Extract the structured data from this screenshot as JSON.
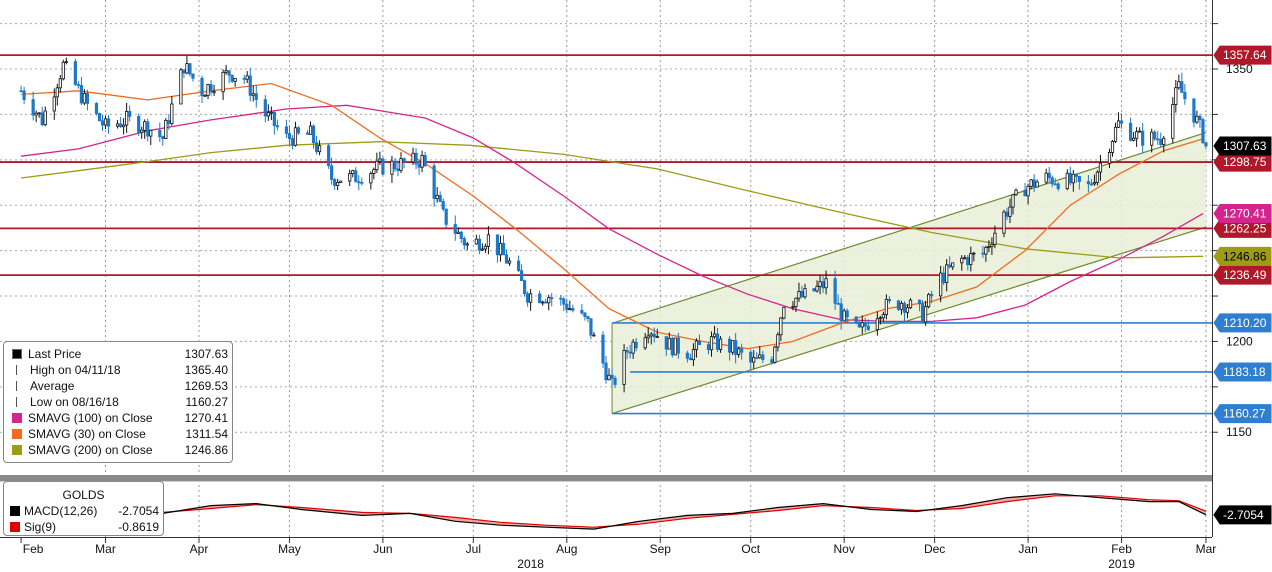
{
  "chart_data": {
    "type": "candlestick",
    "instrument": "GOLDS",
    "x_months": [
      "Feb",
      "Mar",
      "Apr",
      "May",
      "Jun",
      "Jul",
      "Aug",
      "Sep",
      "Oct",
      "Nov",
      "Dec",
      "Jan",
      "Feb",
      "Mar"
    ],
    "x_years": [
      "2018",
      "2019"
    ],
    "y_ticks": [
      "1350",
      "1200",
      "1150"
    ],
    "y_tick_values": [
      1350,
      1200,
      1150
    ],
    "ylim": [
      1127,
      1388
    ],
    "grid": true,
    "price_levels": [
      {
        "label": "1357.64",
        "value": 1357.64
      },
      {
        "label": "1298.75",
        "value": 1298.75
      },
      {
        "label": "1262.25",
        "value": 1262.25
      },
      {
        "label": "1236.49",
        "value": 1236.49
      }
    ],
    "support_levels": [
      {
        "label": "1210.20",
        "value": 1210.2
      },
      {
        "label": "1183.18",
        "value": 1183.18
      },
      {
        "label": "1160.27",
        "value": 1160.27
      }
    ],
    "value_tags": [
      {
        "label": "1307.63",
        "value": 1307.63,
        "color": "#000000"
      },
      {
        "label": "1270.41",
        "value": 1270.41,
        "color": "#d6248f"
      },
      {
        "label": "1246.86",
        "value": 1246.86,
        "color": "#9e9b17"
      }
    ],
    "channel": {
      "start_date": "2018-08-16",
      "end_date": "2019-03-01",
      "upper": [
        1210,
        1315
      ],
      "lower": [
        1160.27,
        1263
      ]
    },
    "sma_30_path": [
      [
        "2018-02-01",
        1336
      ],
      [
        "2018-02-20",
        1338
      ],
      [
        "2018-03-15",
        1333
      ],
      [
        "2018-04-05",
        1338
      ],
      [
        "2018-04-25",
        1342
      ],
      [
        "2018-05-15",
        1330
      ],
      [
        "2018-05-31",
        1312
      ],
      [
        "2018-06-15",
        1298
      ],
      [
        "2018-07-01",
        1280
      ],
      [
        "2018-07-15",
        1262
      ],
      [
        "2018-07-31",
        1240
      ],
      [
        "2018-08-15",
        1218
      ],
      [
        "2018-08-31",
        1205
      ],
      [
        "2018-09-15",
        1200
      ],
      [
        "2018-09-30",
        1196
      ],
      [
        "2018-10-15",
        1200
      ],
      [
        "2018-10-31",
        1210
      ],
      [
        "2018-11-15",
        1218
      ],
      [
        "2018-11-30",
        1222
      ],
      [
        "2018-12-15",
        1230
      ],
      [
        "2018-12-31",
        1250
      ],
      [
        "2019-01-15",
        1275
      ],
      [
        "2019-01-31",
        1292
      ],
      [
        "2019-02-15",
        1305
      ],
      [
        "2019-02-28",
        1311.54
      ]
    ],
    "sma_100_path": [
      [
        "2018-02-01",
        1302
      ],
      [
        "2018-02-20",
        1306
      ],
      [
        "2018-03-15",
        1316
      ],
      [
        "2018-04-05",
        1322
      ],
      [
        "2018-04-30",
        1328
      ],
      [
        "2018-05-20",
        1330
      ],
      [
        "2018-06-15",
        1323
      ],
      [
        "2018-07-01",
        1312
      ],
      [
        "2018-07-15",
        1298
      ],
      [
        "2018-07-31",
        1280
      ],
      [
        "2018-08-15",
        1262
      ],
      [
        "2018-08-31",
        1248
      ],
      [
        "2018-09-15",
        1236
      ],
      [
        "2018-09-30",
        1226
      ],
      [
        "2018-10-15",
        1218
      ],
      [
        "2018-10-31",
        1212
      ],
      [
        "2018-11-15",
        1211
      ],
      [
        "2018-11-30",
        1211
      ],
      [
        "2018-12-15",
        1213
      ],
      [
        "2018-12-31",
        1220
      ],
      [
        "2019-01-15",
        1233
      ],
      [
        "2019-01-31",
        1245
      ],
      [
        "2019-02-15",
        1258
      ],
      [
        "2019-02-28",
        1270.41
      ]
    ],
    "sma_200_path": [
      [
        "2018-02-01",
        1290
      ],
      [
        "2018-02-20",
        1294
      ],
      [
        "2018-03-15",
        1299
      ],
      [
        "2018-04-05",
        1304
      ],
      [
        "2018-04-30",
        1308
      ],
      [
        "2018-05-31",
        1310
      ],
      [
        "2018-06-30",
        1308
      ],
      [
        "2018-07-31",
        1303
      ],
      [
        "2018-08-31",
        1295
      ],
      [
        "2018-09-30",
        1283
      ],
      [
        "2018-10-31",
        1271
      ],
      [
        "2018-11-30",
        1260
      ],
      [
        "2018-12-31",
        1251
      ],
      [
        "2019-01-31",
        1246
      ],
      [
        "2019-02-28",
        1246.86
      ]
    ],
    "price_anchors": [
      [
        "2018-02-01",
        1338
      ],
      [
        "2018-02-08",
        1322
      ],
      [
        "2018-02-15",
        1352
      ],
      [
        "2018-02-23",
        1330
      ],
      [
        "2018-03-01",
        1318
      ],
      [
        "2018-03-08",
        1322
      ],
      [
        "2018-03-15",
        1318
      ],
      [
        "2018-03-20",
        1312
      ],
      [
        "2018-03-27",
        1352
      ],
      [
        "2018-04-02",
        1338
      ],
      [
        "2018-04-11",
        1348
      ],
      [
        "2018-04-16",
        1345
      ],
      [
        "2018-04-23",
        1325
      ],
      [
        "2018-04-30",
        1312
      ],
      [
        "2018-05-08",
        1314
      ],
      [
        "2018-05-15",
        1290
      ],
      [
        "2018-05-22",
        1290
      ],
      [
        "2018-05-31",
        1296
      ],
      [
        "2018-06-08",
        1298
      ],
      [
        "2018-06-14",
        1300
      ],
      [
        "2018-06-21",
        1269
      ],
      [
        "2018-06-29",
        1253
      ],
      [
        "2018-07-06",
        1257
      ],
      [
        "2018-07-13",
        1243
      ],
      [
        "2018-07-19",
        1226
      ],
      [
        "2018-07-26",
        1225
      ],
      [
        "2018-08-01",
        1220
      ],
      [
        "2018-08-08",
        1210
      ],
      [
        "2018-08-16",
        1175
      ],
      [
        "2018-08-21",
        1195
      ],
      [
        "2018-08-28",
        1208
      ],
      [
        "2018-09-04",
        1198
      ],
      [
        "2018-09-11",
        1194
      ],
      [
        "2018-09-18",
        1200
      ],
      [
        "2018-09-25",
        1196
      ],
      [
        "2018-10-01",
        1188
      ],
      [
        "2018-10-08",
        1192
      ],
      [
        "2018-10-12",
        1222
      ],
      [
        "2018-10-19",
        1225
      ],
      [
        "2018-10-26",
        1232
      ],
      [
        "2018-11-01",
        1212
      ],
      [
        "2018-11-06",
        1205
      ],
      [
        "2018-11-13",
        1218
      ],
      [
        "2018-11-20",
        1222
      ],
      [
        "2018-11-27",
        1215
      ],
      [
        "2018-12-03",
        1235
      ],
      [
        "2018-12-10",
        1245
      ],
      [
        "2018-12-17",
        1248
      ],
      [
        "2018-12-24",
        1270
      ],
      [
        "2018-12-31",
        1285
      ],
      [
        "2019-01-07",
        1290
      ],
      [
        "2019-01-14",
        1288
      ],
      [
        "2019-01-21",
        1285
      ],
      [
        "2019-01-25",
        1298
      ],
      [
        "2019-01-31",
        1320
      ],
      [
        "2019-02-07",
        1312
      ],
      [
        "2019-02-14",
        1312
      ],
      [
        "2019-02-20",
        1340
      ],
      [
        "2019-02-25",
        1325
      ],
      [
        "2019-03-01",
        1310
      ]
    ],
    "last_value": 1307.63,
    "legend": [
      {
        "label": "Last Price",
        "value": "1307.63",
        "color": "#000000",
        "symbol": "box"
      },
      {
        "label": "High on 04/11/18",
        "value": "1365.40",
        "color": "#555555",
        "symbol": "high"
      },
      {
        "label": "Average",
        "value": "1269.53",
        "color": "#555555",
        "symbol": "avg"
      },
      {
        "label": "Low on 08/16/18",
        "value": "1160.27",
        "color": "#555555",
        "symbol": "low"
      },
      {
        "label": "SMAVG (100)  on Close",
        "value": "1270.41",
        "color": "#d6248f",
        "symbol": "box"
      },
      {
        "label": "SMAVG (30)  on Close",
        "value": "1311.54",
        "color": "#f26b21",
        "symbol": "box"
      },
      {
        "label": "SMAVG (200)  on Close",
        "value": "1246.86",
        "color": "#9e9b17",
        "symbol": "box"
      }
    ],
    "macd": {
      "title": "GOLDS",
      "legend": [
        {
          "label": "MACD(12,26)",
          "value": "-2.7054",
          "color": "#000000"
        },
        {
          "label": "Sig(9)",
          "value": "-0.8619",
          "color": "#e00000"
        }
      ],
      "tag": "-2.7054",
      "ylim": [
        -14,
        14
      ],
      "macd_path": [
        [
          "2018-03-01",
          -1
        ],
        [
          "2018-03-20",
          -2
        ],
        [
          "2018-04-05",
          2
        ],
        [
          "2018-04-20",
          3
        ],
        [
          "2018-05-05",
          0
        ],
        [
          "2018-05-25",
          -3
        ],
        [
          "2018-06-10",
          -2
        ],
        [
          "2018-06-25",
          -6
        ],
        [
          "2018-07-10",
          -8
        ],
        [
          "2018-07-25",
          -9
        ],
        [
          "2018-08-10",
          -10
        ],
        [
          "2018-08-25",
          -6
        ],
        [
          "2018-09-10",
          -3
        ],
        [
          "2018-09-25",
          -2
        ],
        [
          "2018-10-10",
          1
        ],
        [
          "2018-10-25",
          3
        ],
        [
          "2018-11-10",
          0
        ],
        [
          "2018-11-25",
          -1
        ],
        [
          "2018-12-10",
          2
        ],
        [
          "2018-12-25",
          6
        ],
        [
          "2019-01-10",
          8
        ],
        [
          "2019-01-25",
          6
        ],
        [
          "2019-02-10",
          4
        ],
        [
          "2019-02-20",
          4
        ],
        [
          "2019-03-01",
          -2.7054
        ]
      ],
      "signal_path": [
        [
          "2018-03-01",
          -1
        ],
        [
          "2018-03-20",
          -1.5
        ],
        [
          "2018-04-05",
          0.5
        ],
        [
          "2018-04-20",
          2.5
        ],
        [
          "2018-05-05",
          1
        ],
        [
          "2018-05-25",
          -1.5
        ],
        [
          "2018-06-10",
          -2
        ],
        [
          "2018-06-25",
          -4
        ],
        [
          "2018-07-10",
          -6.5
        ],
        [
          "2018-07-25",
          -8
        ],
        [
          "2018-08-10",
          -9
        ],
        [
          "2018-08-25",
          -7.5
        ],
        [
          "2018-09-10",
          -4.5
        ],
        [
          "2018-09-25",
          -2.5
        ],
        [
          "2018-10-10",
          -0.5
        ],
        [
          "2018-10-25",
          2
        ],
        [
          "2018-11-10",
          1
        ],
        [
          "2018-11-25",
          -0.5
        ],
        [
          "2018-12-10",
          0.5
        ],
        [
          "2018-12-25",
          4
        ],
        [
          "2019-01-10",
          7
        ],
        [
          "2019-01-25",
          7
        ],
        [
          "2019-02-10",
          5
        ],
        [
          "2019-02-20",
          4.5
        ],
        [
          "2019-03-01",
          -0.8619
        ]
      ]
    }
  },
  "colors": {
    "resistance": "#b0182a",
    "support": "#2f7fd0",
    "channel_fill": "#e8efd6",
    "channel_line": "#6c8a2e",
    "up": "#111111",
    "down": "#1e78c8"
  }
}
